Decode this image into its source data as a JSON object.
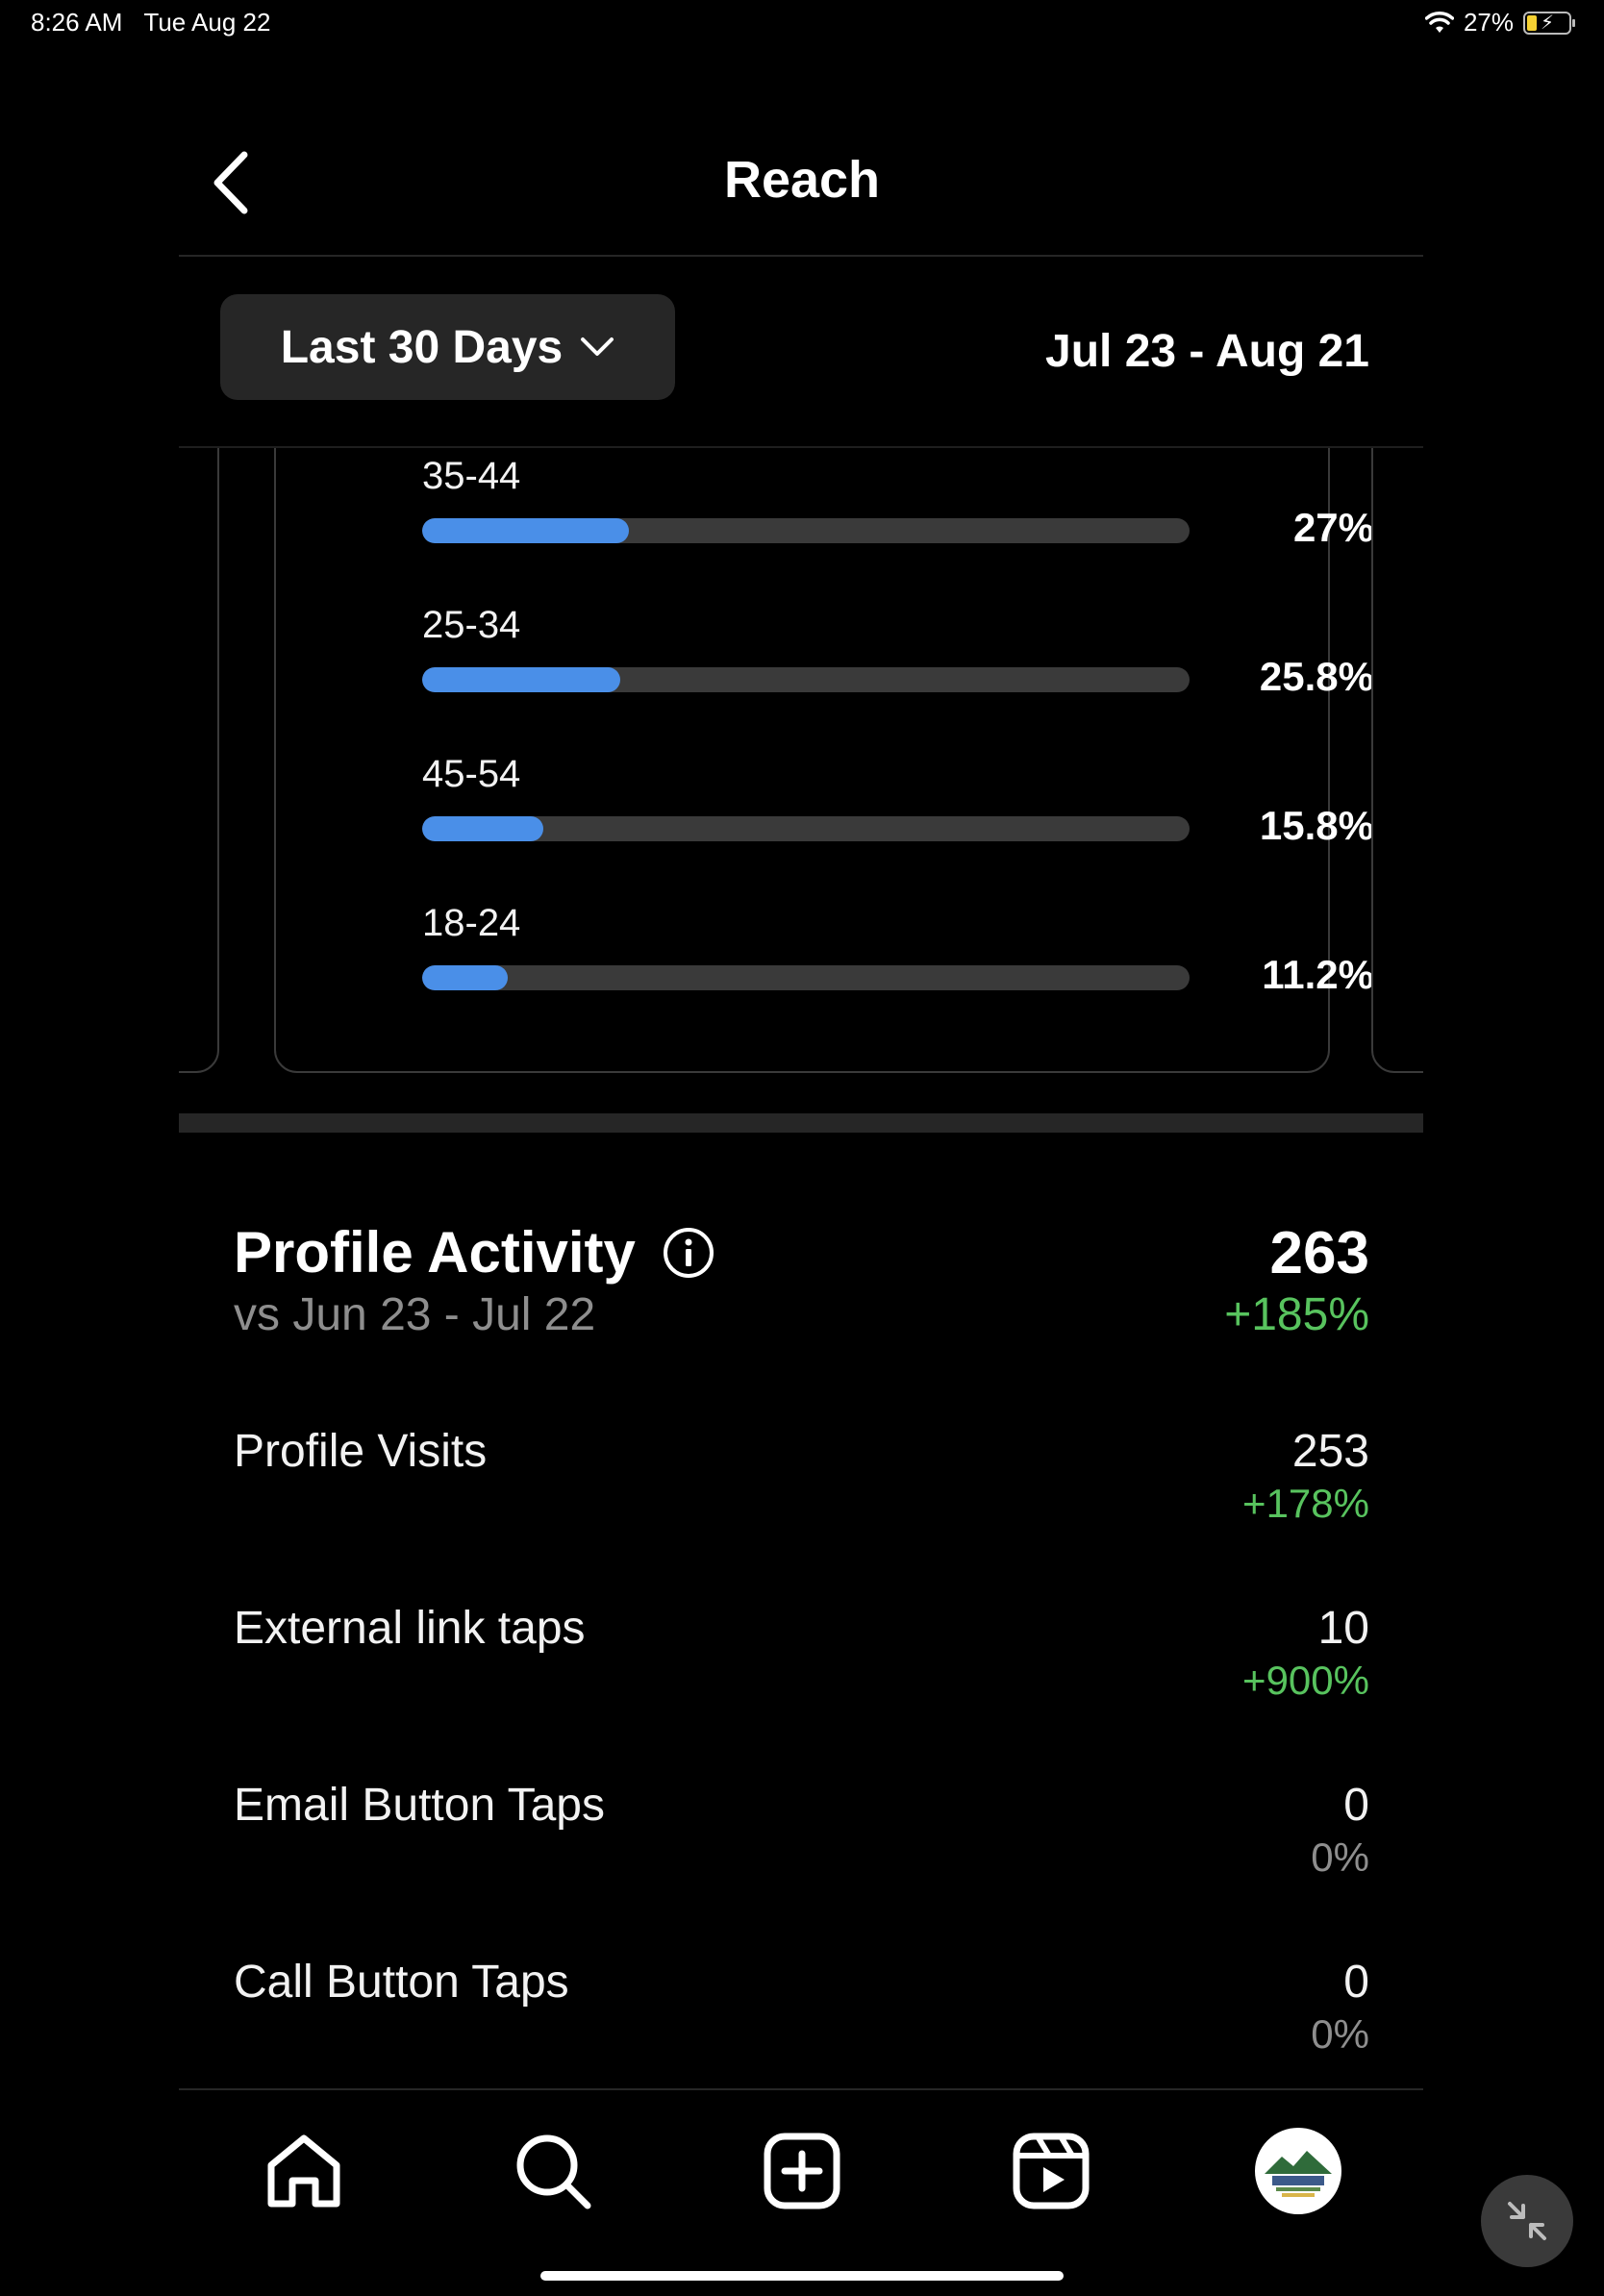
{
  "status_bar": {
    "time": "8:26 AM",
    "date": "Tue Aug 22",
    "battery": "27%"
  },
  "header": {
    "title": "Reach"
  },
  "filter": {
    "range_label": "Last 30 Days",
    "date_range": "Jul 23 - Aug 21"
  },
  "age_groups": [
    {
      "label": "35-44",
      "percent_text": "27%",
      "value": 27
    },
    {
      "label": "25-34",
      "percent_text": "25.8%",
      "value": 25.8
    },
    {
      "label": "45-54",
      "percent_text": "15.8%",
      "value": 15.8
    },
    {
      "label": "18-24",
      "percent_text": "11.2%",
      "value": 11.2
    }
  ],
  "profile_activity": {
    "title": "Profile Activity",
    "comparison": "vs Jun 23 - Jul 22",
    "total": "263",
    "change": "+185%",
    "metrics": [
      {
        "label": "Profile Visits",
        "value": "253",
        "change": "+178%",
        "positive": true
      },
      {
        "label": "External link taps",
        "value": "10",
        "change": "+900%",
        "positive": true
      },
      {
        "label": "Email Button Taps",
        "value": "0",
        "change": "0%",
        "positive": false
      },
      {
        "label": "Call Button Taps",
        "value": "0",
        "change": "0%",
        "positive": false
      }
    ]
  },
  "nav": [
    "home-icon",
    "search-icon",
    "create-icon",
    "reels-icon",
    "profile-avatar"
  ],
  "colors": {
    "accent_blue": "#4a8fe8",
    "positive_green": "#58c35e",
    "muted_gray": "#8e8e8e"
  }
}
